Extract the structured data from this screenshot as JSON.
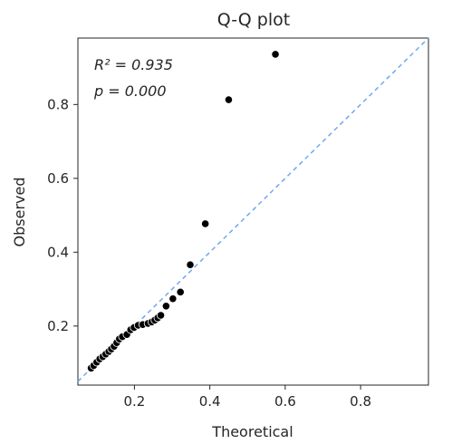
{
  "chart_data": {
    "type": "scatter",
    "title": "Q-Q plot",
    "xlabel": "Theoretical",
    "ylabel": "Observed",
    "xlim": [
      0.05,
      0.98
    ],
    "ylim": [
      0.04,
      0.98
    ],
    "xticks": [
      0.2,
      0.4,
      0.6,
      0.8
    ],
    "xtick_labels": [
      "0.2",
      "0.4",
      "0.6",
      "0.8"
    ],
    "yticks": [
      0.2,
      0.4,
      0.6,
      0.8
    ],
    "ytick_labels": [
      "0.2",
      "0.4",
      "0.6",
      "0.8"
    ],
    "grid": false,
    "annotations": {
      "r2_label": "R² = 0.935",
      "p_label": "p = 0.000"
    },
    "reference_line": {
      "slope": 1,
      "intercept": 0,
      "style": "dashed",
      "color": "#6fa8f0"
    },
    "point_color": "#000000",
    "points": [
      {
        "x": 0.085,
        "y": 0.086
      },
      {
        "x": 0.092,
        "y": 0.093
      },
      {
        "x": 0.1,
        "y": 0.102
      },
      {
        "x": 0.108,
        "y": 0.111
      },
      {
        "x": 0.116,
        "y": 0.117
      },
      {
        "x": 0.124,
        "y": 0.124
      },
      {
        "x": 0.132,
        "y": 0.131
      },
      {
        "x": 0.139,
        "y": 0.138
      },
      {
        "x": 0.146,
        "y": 0.145
      },
      {
        "x": 0.153,
        "y": 0.155
      },
      {
        "x": 0.16,
        "y": 0.165
      },
      {
        "x": 0.168,
        "y": 0.171
      },
      {
        "x": 0.18,
        "y": 0.177
      },
      {
        "x": 0.19,
        "y": 0.19
      },
      {
        "x": 0.199,
        "y": 0.196
      },
      {
        "x": 0.21,
        "y": 0.202
      },
      {
        "x": 0.222,
        "y": 0.204
      },
      {
        "x": 0.236,
        "y": 0.207
      },
      {
        "x": 0.246,
        "y": 0.211
      },
      {
        "x": 0.254,
        "y": 0.216
      },
      {
        "x": 0.262,
        "y": 0.222
      },
      {
        "x": 0.27,
        "y": 0.229
      },
      {
        "x": 0.284,
        "y": 0.254
      },
      {
        "x": 0.302,
        "y": 0.274
      },
      {
        "x": 0.322,
        "y": 0.292
      },
      {
        "x": 0.348,
        "y": 0.366
      },
      {
        "x": 0.388,
        "y": 0.477
      },
      {
        "x": 0.45,
        "y": 0.813
      },
      {
        "x": 0.574,
        "y": 0.936
      }
    ]
  }
}
